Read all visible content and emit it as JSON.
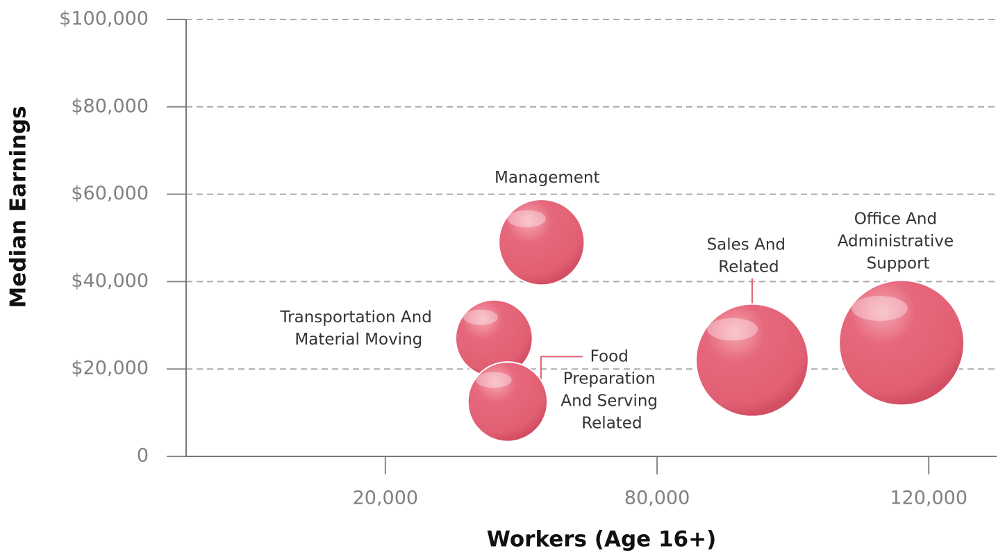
{
  "chart_data": {
    "type": "bubble",
    "x_label": "Workers (Age 16+)",
    "y_label": "Median Earnings",
    "color": "#e15f73",
    "points": [
      {
        "name": "Management",
        "x": 54500,
        "y": 49000
      },
      {
        "name": "Transportation And Material Moving",
        "x": 44000,
        "y": 27000
      },
      {
        "name": "Food Preparation And Serving Related",
        "x": 47000,
        "y": 12500
      },
      {
        "name": "Sales And Related",
        "x": 94000,
        "y": 22000
      },
      {
        "name": "Office And Administrative Support",
        "x": 116000,
        "y": 26000
      }
    ],
    "xlim": [
      -24000,
      130000
    ],
    "xticks": [
      {
        "value": 20000,
        "label": "20,000"
      },
      {
        "value": 80000,
        "label": "80,000"
      },
      {
        "value": 120000,
        "label": "120,000"
      }
    ],
    "ylim": [
      0,
      100000
    ],
    "yticks": [
      0,
      {
        "value": 20000,
        "label": "$20,000"
      },
      {
        "value": 40000,
        "label": "$40,000"
      },
      {
        "value": 60000,
        "label": "$60,000"
      },
      {
        "value": 80000,
        "label": "$80,000"
      },
      {
        "value": 100000,
        "label": "$100,000"
      }
    ],
    "grid": true
  }
}
